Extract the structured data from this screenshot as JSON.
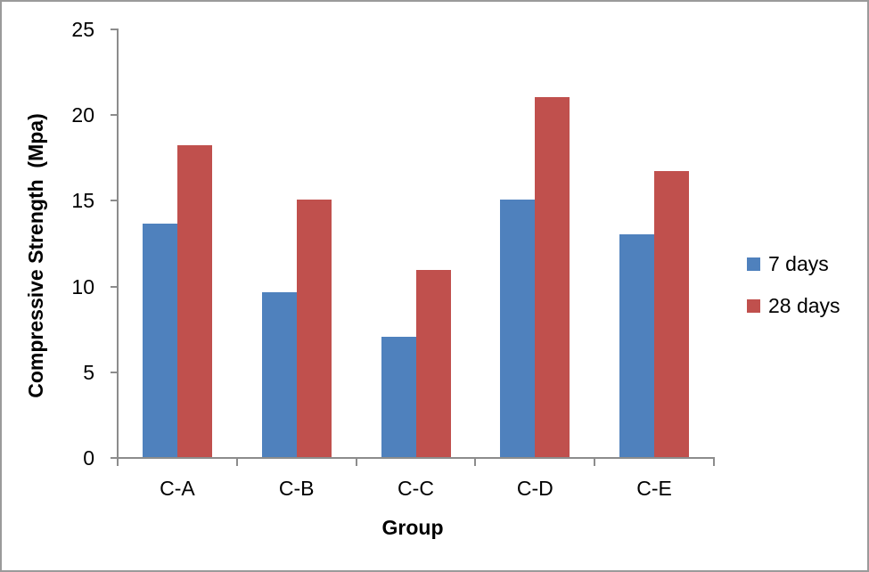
{
  "figure": {
    "background": "#ffffff",
    "border_color": "#9a9a9a"
  },
  "chart_data": {
    "type": "bar",
    "title": "",
    "categories": [
      "C-A",
      "C-B",
      "C-C",
      "C-D",
      "C-E"
    ],
    "series": [
      {
        "name": "7 days",
        "color": "#4F81BD",
        "values": [
          13.6,
          9.6,
          7.0,
          15.0,
          13.0
        ]
      },
      {
        "name": "28 days",
        "color": "#C0504D",
        "values": [
          18.2,
          15.0,
          10.9,
          21.0,
          16.7
        ]
      }
    ],
    "xlabel": "Group",
    "ylabel": "Compressive Strength  (Mpa)",
    "ylim": [
      0,
      25
    ],
    "yticks": [
      0,
      5,
      10,
      15,
      20,
      25
    ],
    "grid": false,
    "legend_position": "right",
    "axis_color": "#8c8c8c",
    "text_color": "#000000"
  }
}
